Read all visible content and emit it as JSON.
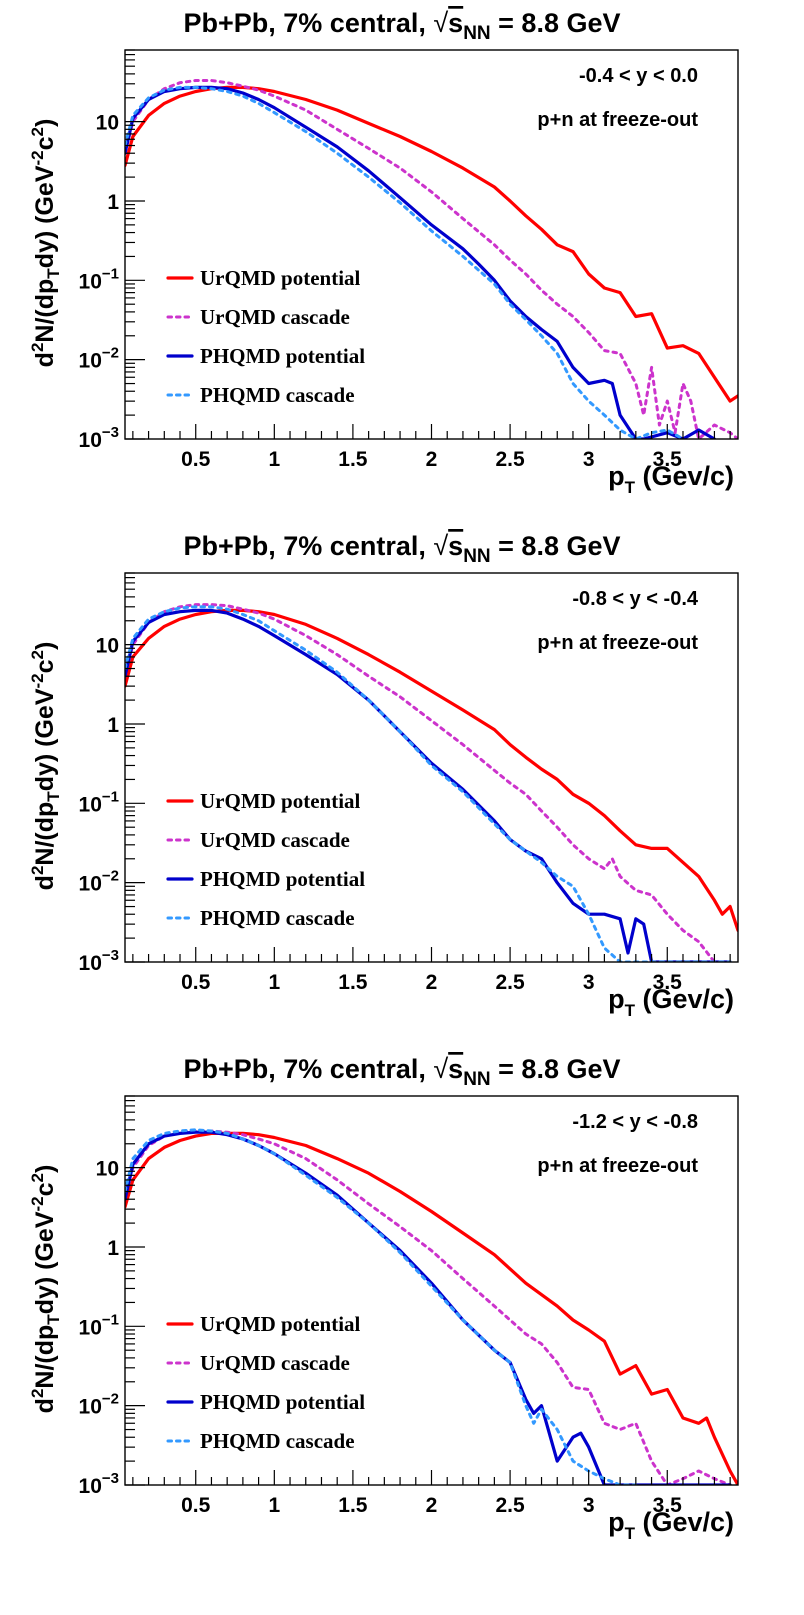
{
  "chart_data": [
    {
      "type": "line",
      "title_prefix": "Pb+Pb, 7% central,",
      "title_energy": "s",
      "title_energy_sub": "NN",
      "title_suffix": "= 8.8 GeV",
      "ylabel": {
        "a": "d",
        "a_sup": "2",
        "b": "N/(dp",
        "b_sub": "T",
        "c": "dy) (GeV",
        "c_sup": "-2",
        "d": "c",
        "d_sup": "2",
        "e": ")"
      },
      "xlabel": {
        "main": "p",
        "sub": "T",
        "unit": "(Gev/c)"
      },
      "yscale": "log",
      "ylim": [
        0.001,
        80
      ],
      "xlim": [
        0.05,
        3.95
      ],
      "x_ticks": [
        "0.5",
        "1",
        "1.5",
        "2",
        "2.5",
        "3",
        "3.5"
      ],
      "y_ticks": [
        {
          "value": 10,
          "base": "10",
          "exp": ""
        },
        {
          "value": 1,
          "base": "1",
          "exp": ""
        },
        {
          "value": 0.1,
          "base": "10",
          "exp": "−1"
        },
        {
          "value": 0.01,
          "base": "10",
          "exp": "−2"
        },
        {
          "value": 0.001,
          "base": "10",
          "exp": "−3"
        }
      ],
      "annotations": [
        "-0.4 < y < 0.0",
        "p+n at freeze-out"
      ],
      "legend_position": "bottom-left",
      "series": [
        {
          "name": "UrQMD potential",
          "color": "#ff0000",
          "style": "solid",
          "x": [
            0.05,
            0.1,
            0.2,
            0.3,
            0.4,
            0.5,
            0.6,
            0.7,
            0.8,
            0.9,
            1.0,
            1.2,
            1.4,
            1.6,
            1.8,
            2.0,
            2.2,
            2.4,
            2.5,
            2.6,
            2.7,
            2.8,
            2.9,
            3.0,
            3.1,
            3.2,
            3.3,
            3.4,
            3.5,
            3.6,
            3.7,
            3.8,
            3.9,
            3.95
          ],
          "y": [
            2.8,
            6.5,
            12,
            17,
            21,
            24,
            26,
            27,
            27,
            26,
            24,
            19,
            14,
            9.5,
            6.5,
            4.2,
            2.6,
            1.5,
            1.0,
            0.65,
            0.44,
            0.28,
            0.23,
            0.12,
            0.08,
            0.07,
            0.035,
            0.038,
            0.014,
            0.015,
            0.012,
            0.006,
            0.003,
            0.0035
          ]
        },
        {
          "name": "UrQMD cascade",
          "color": "#cc33cc",
          "style": "dotted",
          "x": [
            0.05,
            0.1,
            0.2,
            0.3,
            0.4,
            0.5,
            0.6,
            0.7,
            0.8,
            0.9,
            1.0,
            1.2,
            1.4,
            1.6,
            1.8,
            2.0,
            2.2,
            2.4,
            2.5,
            2.6,
            2.7,
            2.8,
            2.9,
            3.0,
            3.1,
            3.2,
            3.3,
            3.35,
            3.4,
            3.45,
            3.5,
            3.55,
            3.6,
            3.65,
            3.7,
            3.8,
            3.9,
            3.95
          ],
          "y": [
            4,
            10,
            19,
            26,
            31,
            33,
            33,
            31,
            28,
            25,
            21,
            14,
            8,
            4.6,
            2.6,
            1.3,
            0.6,
            0.28,
            0.18,
            0.12,
            0.075,
            0.05,
            0.035,
            0.022,
            0.013,
            0.012,
            0.005,
            0.002,
            0.008,
            0.0015,
            0.003,
            0.0012,
            0.005,
            0.003,
            0.001,
            0.0015,
            0.0012,
            0.001
          ]
        },
        {
          "name": "PHQMD potential",
          "color": "#0000cc",
          "style": "solid",
          "x": [
            0.05,
            0.1,
            0.2,
            0.3,
            0.4,
            0.5,
            0.6,
            0.7,
            0.8,
            0.9,
            1.0,
            1.2,
            1.4,
            1.6,
            1.8,
            2.0,
            2.2,
            2.3,
            2.4,
            2.5,
            2.6,
            2.7,
            2.8,
            2.9,
            3.0,
            3.1,
            3.15,
            3.2,
            3.3,
            3.35,
            3.5,
            3.6,
            3.7,
            3.8
          ],
          "y": [
            4,
            11,
            19,
            24,
            26,
            27,
            27,
            26,
            23,
            19,
            15,
            8.5,
            4.8,
            2.4,
            1.1,
            0.5,
            0.25,
            0.16,
            0.1,
            0.055,
            0.035,
            0.024,
            0.017,
            0.008,
            0.005,
            0.0055,
            0.005,
            0.002,
            0.001,
            0.0008,
            0.0012,
            0.001,
            0.0013,
            0.001
          ]
        },
        {
          "name": "PHQMD cascade",
          "color": "#3399ff",
          "style": "dotted",
          "x": [
            0.05,
            0.1,
            0.2,
            0.3,
            0.4,
            0.5,
            0.6,
            0.7,
            0.8,
            0.9,
            1.0,
            1.2,
            1.4,
            1.6,
            1.8,
            2.0,
            2.2,
            2.4,
            2.5,
            2.6,
            2.7,
            2.8,
            2.9,
            3.0,
            3.1,
            3.2,
            3.3,
            3.4,
            3.5,
            3.6
          ],
          "y": [
            5,
            12,
            20,
            25,
            27,
            27,
            26,
            24,
            21,
            17,
            13,
            7.5,
            4,
            2,
            0.95,
            0.42,
            0.2,
            0.09,
            0.05,
            0.032,
            0.02,
            0.012,
            0.005,
            0.003,
            0.002,
            0.0013,
            0.001,
            0.0012,
            0.0013,
            0.001
          ]
        }
      ]
    },
    {
      "type": "line",
      "title_prefix": "Pb+Pb, 7% central,",
      "title_energy": "s",
      "title_energy_sub": "NN",
      "title_suffix": "= 8.8 GeV",
      "ylabel": {
        "a": "d",
        "a_sup": "2",
        "b": "N/(dp",
        "b_sub": "T",
        "c": "dy) (GeV",
        "c_sup": "-2",
        "d": "c",
        "d_sup": "2",
        "e": ")"
      },
      "xlabel": {
        "main": "p",
        "sub": "T",
        "unit": "(Gev/c)"
      },
      "yscale": "log",
      "ylim": [
        0.001,
        80
      ],
      "xlim": [
        0.05,
        3.95
      ],
      "x_ticks": [
        "0.5",
        "1",
        "1.5",
        "2",
        "2.5",
        "3",
        "3.5"
      ],
      "y_ticks": [
        {
          "value": 10,
          "base": "10",
          "exp": ""
        },
        {
          "value": 1,
          "base": "1",
          "exp": ""
        },
        {
          "value": 0.1,
          "base": "10",
          "exp": "−1"
        },
        {
          "value": 0.01,
          "base": "10",
          "exp": "−2"
        },
        {
          "value": 0.001,
          "base": "10",
          "exp": "−3"
        }
      ],
      "annotations": [
        "-0.8 < y < -0.4",
        "p+n at freeze-out"
      ],
      "legend_position": "bottom-left",
      "series": [
        {
          "name": "UrQMD potential",
          "color": "#ff0000",
          "style": "solid",
          "x": [
            0.05,
            0.1,
            0.2,
            0.3,
            0.4,
            0.5,
            0.6,
            0.7,
            0.8,
            0.9,
            1.0,
            1.2,
            1.4,
            1.6,
            1.8,
            2.0,
            2.2,
            2.4,
            2.5,
            2.6,
            2.7,
            2.8,
            2.9,
            3.0,
            3.1,
            3.2,
            3.3,
            3.4,
            3.5,
            3.6,
            3.7,
            3.8,
            3.85,
            3.9,
            3.95
          ],
          "y": [
            3,
            7,
            12,
            17,
            21,
            24,
            26,
            27,
            27,
            26,
            24,
            18,
            12,
            7.5,
            4.5,
            2.6,
            1.5,
            0.85,
            0.55,
            0.38,
            0.27,
            0.2,
            0.13,
            0.1,
            0.07,
            0.045,
            0.03,
            0.027,
            0.027,
            0.018,
            0.012,
            0.006,
            0.004,
            0.005,
            0.0025
          ]
        },
        {
          "name": "UrQMD cascade",
          "color": "#cc33cc",
          "style": "dotted",
          "x": [
            0.05,
            0.1,
            0.2,
            0.3,
            0.4,
            0.5,
            0.6,
            0.7,
            0.8,
            0.9,
            1.0,
            1.2,
            1.4,
            1.6,
            1.8,
            2.0,
            2.2,
            2.4,
            2.5,
            2.6,
            2.7,
            2.8,
            2.9,
            3.0,
            3.1,
            3.15,
            3.2,
            3.3,
            3.4,
            3.5,
            3.6,
            3.7,
            3.8,
            3.9
          ],
          "y": [
            4,
            10,
            19,
            26,
            30,
            32,
            32,
            31,
            28,
            25,
            21,
            13,
            7.5,
            4,
            2.2,
            1.1,
            0.55,
            0.26,
            0.18,
            0.13,
            0.08,
            0.05,
            0.03,
            0.02,
            0.015,
            0.02,
            0.012,
            0.008,
            0.007,
            0.004,
            0.0025,
            0.0018,
            0.001,
            0.001
          ]
        },
        {
          "name": "PHQMD potential",
          "color": "#0000cc",
          "style": "solid",
          "x": [
            0.05,
            0.1,
            0.2,
            0.3,
            0.4,
            0.5,
            0.6,
            0.7,
            0.8,
            0.9,
            1.0,
            1.2,
            1.4,
            1.6,
            1.8,
            2.0,
            2.2,
            2.4,
            2.5,
            2.6,
            2.7,
            2.8,
            2.9,
            3.0,
            3.1,
            3.2,
            3.25,
            3.3,
            3.35,
            3.4,
            3.5,
            3.6,
            3.7,
            3.8,
            3.9
          ],
          "y": [
            4,
            11,
            19,
            24,
            26,
            27,
            27,
            25,
            21,
            17,
            13,
            7.5,
            4.2,
            2,
            0.8,
            0.32,
            0.15,
            0.06,
            0.035,
            0.025,
            0.02,
            0.01,
            0.0055,
            0.004,
            0.004,
            0.0035,
            0.0013,
            0.0035,
            0.003,
            0.001,
            0.001,
            0.001,
            0.001,
            0.001,
            0.001
          ]
        },
        {
          "name": "PHQMD cascade",
          "color": "#3399ff",
          "style": "dotted",
          "x": [
            0.05,
            0.1,
            0.2,
            0.3,
            0.4,
            0.5,
            0.6,
            0.7,
            0.8,
            0.9,
            1.0,
            1.2,
            1.4,
            1.6,
            1.8,
            2.0,
            2.2,
            2.4,
            2.5,
            2.6,
            2.7,
            2.8,
            2.9,
            3.0,
            3.1,
            3.2,
            3.3,
            3.4,
            3.5,
            3.6,
            3.7,
            3.8,
            3.9
          ],
          "y": [
            5,
            12,
            21,
            26,
            29,
            30,
            30,
            28,
            24,
            20,
            15,
            8.5,
            4.5,
            2,
            0.8,
            0.3,
            0.14,
            0.055,
            0.035,
            0.025,
            0.018,
            0.012,
            0.009,
            0.004,
            0.0015,
            0.001,
            0.001,
            0.001,
            0.001,
            0.001,
            0.001,
            0.001,
            0.001
          ]
        }
      ]
    },
    {
      "type": "line",
      "title_prefix": "Pb+Pb, 7% central,",
      "title_energy": "s",
      "title_energy_sub": "NN",
      "title_suffix": "= 8.8 GeV",
      "ylabel": {
        "a": "d",
        "a_sup": "2",
        "b": "N/(dp",
        "b_sub": "T",
        "c": "dy) (GeV",
        "c_sup": "-2",
        "d": "c",
        "d_sup": "2",
        "e": ")"
      },
      "xlabel": {
        "main": "p",
        "sub": "T",
        "unit": "(Gev/c)"
      },
      "yscale": "log",
      "ylim": [
        0.001,
        80
      ],
      "xlim": [
        0.05,
        3.95
      ],
      "x_ticks": [
        "0.5",
        "1",
        "1.5",
        "2",
        "2.5",
        "3",
        "3.5"
      ],
      "y_ticks": [
        {
          "value": 10,
          "base": "10",
          "exp": ""
        },
        {
          "value": 1,
          "base": "1",
          "exp": ""
        },
        {
          "value": 0.1,
          "base": "10",
          "exp": "−1"
        },
        {
          "value": 0.01,
          "base": "10",
          "exp": "−2"
        },
        {
          "value": 0.001,
          "base": "10",
          "exp": "−3"
        }
      ],
      "annotations": [
        "-1.2 < y < -0.8",
        "p+n at freeze-out"
      ],
      "legend_position": "bottom-left",
      "series": [
        {
          "name": "UrQMD potential",
          "color": "#ff0000",
          "style": "solid",
          "x": [
            0.05,
            0.1,
            0.2,
            0.3,
            0.4,
            0.5,
            0.6,
            0.7,
            0.8,
            0.9,
            1.0,
            1.2,
            1.4,
            1.6,
            1.8,
            2.0,
            2.2,
            2.4,
            2.6,
            2.8,
            2.9,
            3.0,
            3.1,
            3.2,
            3.3,
            3.4,
            3.5,
            3.6,
            3.7,
            3.75,
            3.8,
            3.9,
            3.95
          ],
          "y": [
            3.2,
            7,
            13,
            18,
            22,
            25,
            27,
            27,
            27,
            26,
            24,
            19,
            13,
            8.5,
            5,
            2.8,
            1.5,
            0.8,
            0.35,
            0.18,
            0.12,
            0.09,
            0.065,
            0.025,
            0.032,
            0.014,
            0.016,
            0.007,
            0.006,
            0.007,
            0.004,
            0.0015,
            0.001
          ]
        },
        {
          "name": "UrQMD cascade",
          "color": "#cc33cc",
          "style": "dotted",
          "x": [
            0.05,
            0.1,
            0.2,
            0.3,
            0.4,
            0.5,
            0.6,
            0.7,
            0.8,
            0.9,
            1.0,
            1.2,
            1.4,
            1.6,
            1.8,
            2.0,
            2.2,
            2.4,
            2.6,
            2.7,
            2.8,
            2.9,
            3.0,
            3.1,
            3.2,
            3.3,
            3.4,
            3.5,
            3.6,
            3.7,
            3.8,
            3.9
          ],
          "y": [
            4.5,
            10,
            19,
            25,
            28,
            29,
            29,
            28,
            26,
            23,
            20,
            13,
            7,
            3.5,
            1.8,
            0.9,
            0.4,
            0.18,
            0.08,
            0.06,
            0.035,
            0.017,
            0.016,
            0.006,
            0.005,
            0.006,
            0.002,
            0.001,
            0.0012,
            0.0015,
            0.0012,
            0.001
          ]
        },
        {
          "name": "PHQMD potential",
          "color": "#0000cc",
          "style": "solid",
          "x": [
            0.05,
            0.1,
            0.2,
            0.3,
            0.4,
            0.5,
            0.6,
            0.7,
            0.8,
            0.9,
            1.0,
            1.2,
            1.4,
            1.6,
            1.8,
            2.0,
            2.2,
            2.4,
            2.5,
            2.6,
            2.65,
            2.7,
            2.8,
            2.9,
            2.95,
            3.0,
            3.1,
            3.2,
            3.3,
            3.5,
            3.7,
            3.9
          ],
          "y": [
            4,
            11,
            20,
            25,
            27,
            28,
            28,
            26,
            23,
            19,
            15,
            8.5,
            4.5,
            2,
            0.9,
            0.35,
            0.12,
            0.05,
            0.035,
            0.012,
            0.008,
            0.01,
            0.002,
            0.004,
            0.0045,
            0.003,
            0.001,
            0.001,
            0.001,
            0.001,
            0.001,
            0.001
          ]
        },
        {
          "name": "PHQMD cascade",
          "color": "#3399ff",
          "style": "dotted",
          "x": [
            0.05,
            0.1,
            0.2,
            0.3,
            0.4,
            0.5,
            0.6,
            0.7,
            0.8,
            0.9,
            1.0,
            1.2,
            1.4,
            1.6,
            1.8,
            2.0,
            2.2,
            2.4,
            2.5,
            2.6,
            2.65,
            2.7,
            2.8,
            2.9,
            3.0,
            3.1,
            3.2,
            3.3
          ],
          "y": [
            5,
            13,
            22,
            27,
            29,
            30,
            29,
            27,
            23,
            19,
            15,
            8,
            4.2,
            2,
            0.85,
            0.32,
            0.12,
            0.05,
            0.035,
            0.01,
            0.006,
            0.009,
            0.005,
            0.002,
            0.0015,
            0.0012,
            0.001,
            0.001
          ]
        }
      ]
    }
  ]
}
